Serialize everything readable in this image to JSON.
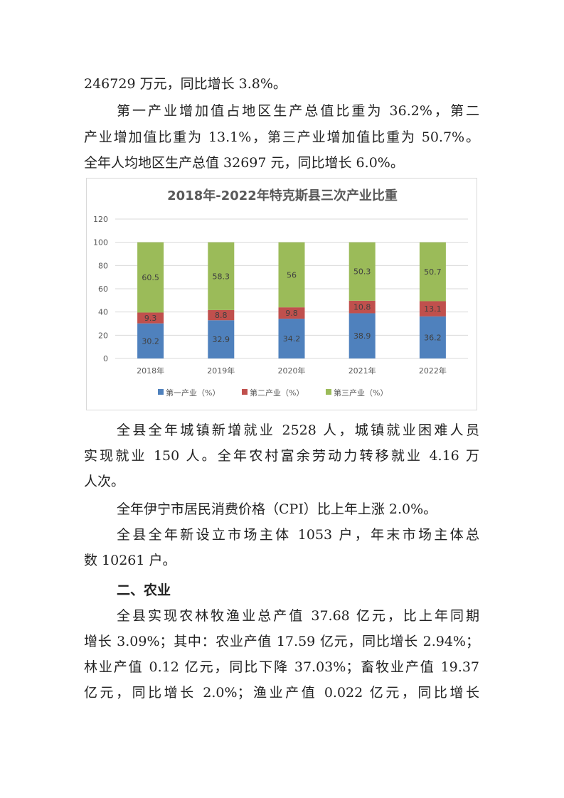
{
  "paragraphs_before": [
    {
      "lines": [
        "246729 万元，同比增长 3.8%。"
      ],
      "indent_first": false
    },
    {
      "lines": [
        "第一产业增加值占地区生产总值比重为 36.2%，第二",
        "产业增加值比重为 13.1%，第三产业增加值比重为 50.7%。",
        "全年人均地区生产总值 32697 元，同比增长 6.0%。"
      ],
      "indent_first": true
    }
  ],
  "paragraphs_after": [
    {
      "lines": [
        "全县全年城镇新增就业 2528 人，城镇就业困难人员",
        "实现就业 150 人。全年农村富余劳动力转移就业 4.16 万",
        "人次。"
      ]
    },
    {
      "lines": [
        "全年伊宁市居民消费价格（CPI）比上年上涨 2.0%。"
      ]
    },
    {
      "lines": [
        "全县全年新设立市场主体 1053 户，年末市场主体总",
        "数 10261 户。"
      ]
    },
    {
      "heading": "二、农业"
    },
    {
      "lines": [
        "全县实现农林牧渔业总产值 37.68 亿元，比上年同期",
        "增长 3.09%；其中：农业产值 17.59 亿元，同比增长 2.94%；",
        "林业产值 0.12 亿元，同比下降 37.03%；畜牧业产值 19.37",
        "亿元，同比增长 2.0%；渔业产值 0.022 亿元，同比增长"
      ]
    }
  ],
  "chart_data": {
    "type": "bar",
    "stacked": true,
    "title": "2018年-2022年特克斯县三次产业比重",
    "categories": [
      "2018年",
      "2019年",
      "2020年",
      "2021年",
      "2022年"
    ],
    "series": [
      {
        "name": "第一产业（%）",
        "color": "#4f81bd",
        "values": [
          30.2,
          32.9,
          34.2,
          38.9,
          36.2
        ]
      },
      {
        "name": "第二产业（%）",
        "color": "#c0504d",
        "values": [
          9.3,
          8.8,
          9.8,
          10.8,
          13.1
        ]
      },
      {
        "name": "第三产业（%）",
        "color": "#9bbb59",
        "values": [
          60.5,
          58.3,
          56,
          50.3,
          50.7
        ]
      }
    ],
    "ylim": [
      0,
      120
    ],
    "yticks": [
      0,
      20,
      40,
      60,
      80,
      100,
      120
    ],
    "grid": true,
    "legend": "bottom",
    "data_labels": true
  }
}
